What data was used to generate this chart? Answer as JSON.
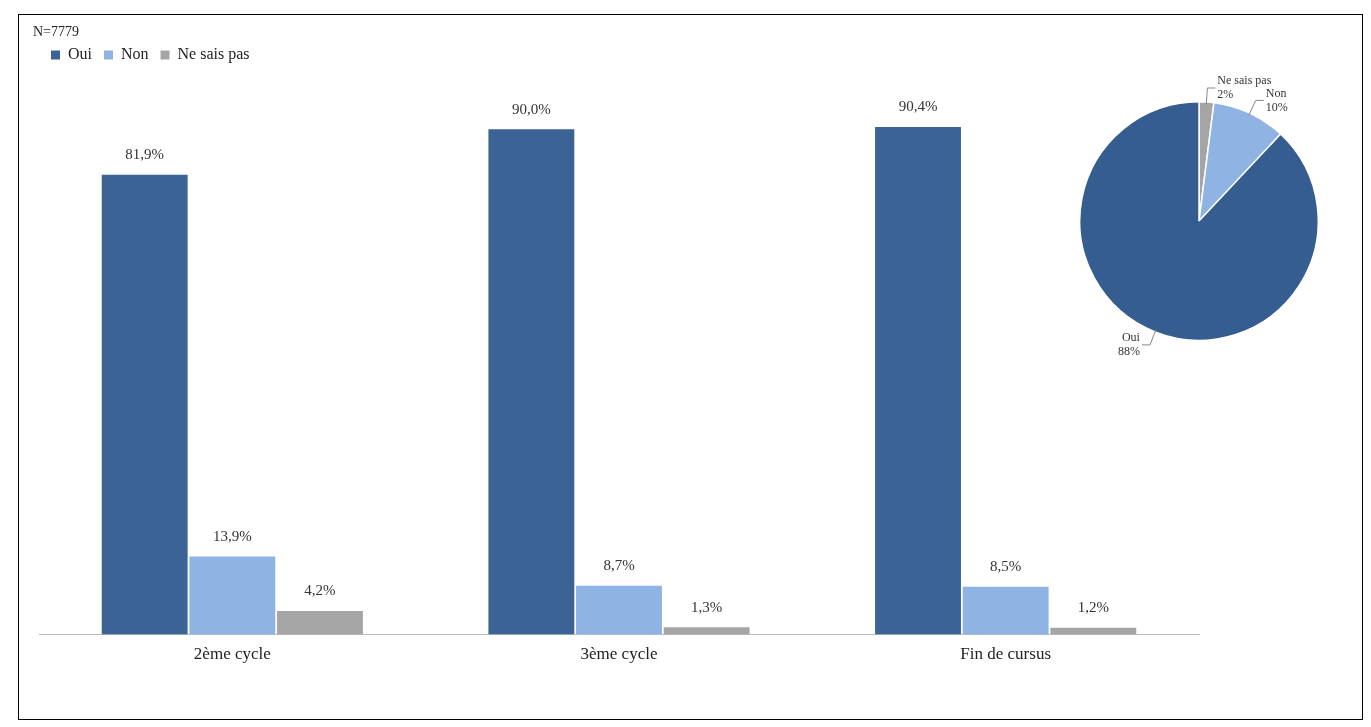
{
  "chart_data": [
    {
      "type": "bar",
      "categories": [
        "2ème cycle",
        "3ème cycle",
        "Fin de cursus"
      ],
      "legend": "top left",
      "annotations": [
        "N=7779"
      ],
      "series": [
        {
          "name": "Oui",
          "color": "#3b6396",
          "values": [
            81.9,
            90.0,
            90.4
          ],
          "value_labels": [
            "81,9%",
            "90,0%",
            "90,4%"
          ]
        },
        {
          "name": "Non",
          "color": "#8fb4e3",
          "values": [
            13.9,
            8.7,
            8.5
          ],
          "value_labels": [
            "13,9%",
            "8,7%",
            "8,5%"
          ]
        },
        {
          "name": "Ne sais pas",
          "color": "#a5a5a5",
          "values": [
            4.2,
            1.3,
            1.2
          ],
          "value_labels": [
            "4,2%",
            "1,3%",
            "1,2%"
          ]
        }
      ]
    },
    {
      "type": "pie",
      "categories": [
        "Ne sais pas",
        "Non",
        "Oui"
      ],
      "values": [
        2,
        10,
        88
      ],
      "colors": [
        "#a5a5a5",
        "#8fb4e3",
        "#365d8f"
      ],
      "value_labels": [
        "2%",
        "10%",
        "88%"
      ],
      "legend": false
    }
  ]
}
